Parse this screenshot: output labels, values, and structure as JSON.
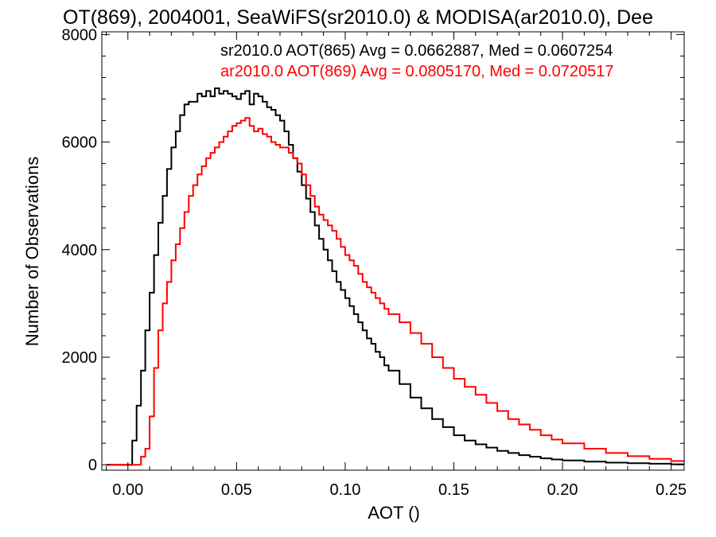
{
  "chart_data": {
    "type": "line",
    "title": "OT(869), 2004001, SeaWiFS(sr2010.0) & MODISA(ar2010.0), Dee",
    "xlabel": "AOT ()",
    "ylabel": "Number of Observations",
    "xlim": [
      -0.012,
      0.256
    ],
    "ylim": [
      -100,
      8050
    ],
    "xticks": [
      0.0,
      0.05,
      0.1,
      0.15,
      0.2,
      0.25
    ],
    "xtick_labels": [
      "0.00",
      "0.05",
      "0.10",
      "0.15",
      "0.20",
      "0.25"
    ],
    "yticks": [
      0,
      2000,
      4000,
      6000,
      8000
    ],
    "ytick_labels": [
      "0",
      "2000",
      "4000",
      "6000",
      "8000"
    ],
    "grid": false,
    "legend_position": "top-right",
    "series": [
      {
        "legend": "sr2010.0 AOT(865) Avg = 0.0662887, Med = 0.0607254",
        "color": "#000000",
        "x": [
          -0.01,
          0.0,
          0.002,
          0.004,
          0.006,
          0.008,
          0.01,
          0.012,
          0.014,
          0.016,
          0.018,
          0.02,
          0.022,
          0.024,
          0.026,
          0.028,
          0.03,
          0.032,
          0.034,
          0.036,
          0.038,
          0.04,
          0.042,
          0.044,
          0.046,
          0.048,
          0.05,
          0.052,
          0.054,
          0.056,
          0.058,
          0.06,
          0.062,
          0.064,
          0.066,
          0.068,
          0.07,
          0.072,
          0.074,
          0.076,
          0.078,
          0.08,
          0.082,
          0.084,
          0.086,
          0.088,
          0.09,
          0.092,
          0.094,
          0.096,
          0.098,
          0.1,
          0.102,
          0.104,
          0.106,
          0.108,
          0.11,
          0.112,
          0.114,
          0.116,
          0.118,
          0.12,
          0.125,
          0.13,
          0.135,
          0.14,
          0.145,
          0.15,
          0.155,
          0.16,
          0.165,
          0.17,
          0.175,
          0.18,
          0.185,
          0.19,
          0.195,
          0.2,
          0.21,
          0.22,
          0.23,
          0.24,
          0.25,
          0.256
        ],
        "y": [
          0,
          0,
          450,
          1100,
          1750,
          2500,
          3200,
          3900,
          4500,
          5000,
          5500,
          5900,
          6200,
          6500,
          6700,
          6750,
          6750,
          6900,
          6850,
          6950,
          6850,
          7000,
          6900,
          6950,
          6900,
          6850,
          6800,
          6900,
          6950,
          6700,
          6900,
          6850,
          6750,
          6650,
          6600,
          6500,
          6400,
          6200,
          5950,
          5700,
          5450,
          5200,
          4950,
          4700,
          4450,
          4200,
          4000,
          3800,
          3600,
          3400,
          3250,
          3100,
          2950,
          2800,
          2650,
          2500,
          2350,
          2250,
          2100,
          2000,
          1850,
          1750,
          1500,
          1250,
          1050,
          850,
          700,
          550,
          450,
          380,
          320,
          260,
          220,
          180,
          150,
          120,
          100,
          80,
          60,
          40,
          30,
          20,
          10,
          10
        ]
      },
      {
        "legend": "ar2010.0 AOT(869) Avg = 0.0805170, Med = 0.0720517",
        "color": "#ff0000",
        "x": [
          -0.01,
          0.0,
          0.002,
          0.004,
          0.006,
          0.008,
          0.01,
          0.012,
          0.014,
          0.016,
          0.018,
          0.02,
          0.022,
          0.024,
          0.026,
          0.028,
          0.03,
          0.032,
          0.034,
          0.036,
          0.038,
          0.04,
          0.042,
          0.044,
          0.046,
          0.048,
          0.05,
          0.052,
          0.054,
          0.056,
          0.058,
          0.06,
          0.062,
          0.064,
          0.066,
          0.068,
          0.07,
          0.072,
          0.074,
          0.076,
          0.078,
          0.08,
          0.082,
          0.084,
          0.086,
          0.088,
          0.09,
          0.092,
          0.094,
          0.096,
          0.098,
          0.1,
          0.102,
          0.104,
          0.106,
          0.108,
          0.11,
          0.112,
          0.114,
          0.116,
          0.118,
          0.12,
          0.125,
          0.13,
          0.135,
          0.14,
          0.145,
          0.15,
          0.155,
          0.16,
          0.165,
          0.17,
          0.175,
          0.18,
          0.185,
          0.19,
          0.195,
          0.2,
          0.21,
          0.22,
          0.23,
          0.24,
          0.25,
          0.256
        ],
        "y": [
          0,
          0,
          0,
          0,
          150,
          300,
          900,
          1800,
          2500,
          3000,
          3400,
          3800,
          4100,
          4400,
          4700,
          5000,
          5200,
          5400,
          5550,
          5700,
          5800,
          5900,
          6000,
          6100,
          6200,
          6300,
          6350,
          6400,
          6450,
          6300,
          6200,
          6250,
          6150,
          6100,
          6000,
          5950,
          5900,
          5900,
          5800,
          5700,
          5600,
          5400,
          5200,
          5000,
          4800,
          4650,
          4550,
          4450,
          4350,
          4200,
          4050,
          3900,
          3800,
          3700,
          3550,
          3400,
          3300,
          3200,
          3100,
          3000,
          2900,
          2800,
          2650,
          2450,
          2250,
          2000,
          1800,
          1600,
          1450,
          1300,
          1150,
          1000,
          850,
          750,
          650,
          550,
          470,
          400,
          300,
          220,
          160,
          110,
          70,
          50
        ]
      }
    ]
  }
}
